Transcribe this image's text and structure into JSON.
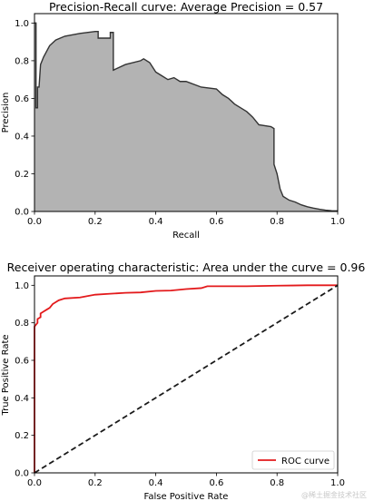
{
  "chart_data": [
    {
      "type": "area",
      "title": "Precision-Recall curve: Average Precision =        0.57",
      "xlabel": "Recall",
      "ylabel": "Precision",
      "xlim": [
        0.0,
        1.0
      ],
      "ylim": [
        0.0,
        1.05
      ],
      "xticks": [
        "0.0",
        "0.2",
        "0.4",
        "0.6",
        "0.8",
        "1.0"
      ],
      "yticks": [
        "0.0",
        "0.2",
        "0.4",
        "0.6",
        "0.8",
        "1.0"
      ],
      "fill_color": "#b3b3b3",
      "line_color": "#333333",
      "series": [
        {
          "x": [
            0.0,
            0.005,
            0.005,
            0.01,
            0.01,
            0.015,
            0.02,
            0.03,
            0.05,
            0.07,
            0.1,
            0.15,
            0.2,
            0.21,
            0.21,
            0.25,
            0.25,
            0.26,
            0.26,
            0.3,
            0.35,
            0.36,
            0.38,
            0.4,
            0.42,
            0.44,
            0.46,
            0.48,
            0.5,
            0.55,
            0.6,
            0.62,
            0.64,
            0.66,
            0.68,
            0.7,
            0.72,
            0.74,
            0.78,
            0.79,
            0.79,
            0.8,
            0.81,
            0.82,
            0.84,
            0.86,
            0.88,
            0.9,
            0.92,
            0.94,
            0.96,
            0.98,
            1.0
          ],
          "y": [
            1.0,
            1.0,
            0.55,
            0.55,
            0.66,
            0.66,
            0.78,
            0.82,
            0.88,
            0.91,
            0.93,
            0.945,
            0.955,
            0.955,
            0.92,
            0.92,
            0.95,
            0.95,
            0.75,
            0.78,
            0.8,
            0.81,
            0.79,
            0.74,
            0.72,
            0.7,
            0.71,
            0.69,
            0.69,
            0.66,
            0.65,
            0.62,
            0.6,
            0.57,
            0.55,
            0.53,
            0.5,
            0.46,
            0.45,
            0.44,
            0.25,
            0.2,
            0.12,
            0.08,
            0.06,
            0.05,
            0.035,
            0.025,
            0.018,
            0.012,
            0.007,
            0.004,
            0.003
          ]
        }
      ]
    },
    {
      "type": "line",
      "title": "Receiver operating characteristic: Area under the        curve = 0.96",
      "xlabel": "False Positive Rate",
      "ylabel": "True Positive Rate",
      "xlim": [
        0.0,
        1.0
      ],
      "ylim": [
        0.0,
        1.05
      ],
      "xticks": [
        "0.0",
        "0.2",
        "0.4",
        "0.6",
        "0.8",
        "1.0"
      ],
      "yticks": [
        "0.0",
        "0.2",
        "0.4",
        "0.6",
        "0.8",
        "1.0"
      ],
      "legend_position": "lower-right",
      "series": [
        {
          "name": "ROC curve",
          "color": "#e31a1c",
          "x": [
            0.0,
            0.0,
            0.01,
            0.01,
            0.02,
            0.02,
            0.03,
            0.04,
            0.05,
            0.06,
            0.08,
            0.1,
            0.15,
            0.2,
            0.25,
            0.3,
            0.35,
            0.4,
            0.45,
            0.5,
            0.55,
            0.57,
            0.6,
            0.7,
            0.8,
            0.85,
            0.9,
            0.95,
            1.0
          ],
          "y": [
            0.0,
            0.78,
            0.8,
            0.82,
            0.83,
            0.85,
            0.86,
            0.87,
            0.88,
            0.9,
            0.92,
            0.93,
            0.935,
            0.95,
            0.955,
            0.96,
            0.962,
            0.97,
            0.972,
            0.98,
            0.985,
            0.995,
            0.995,
            0.995,
            0.998,
            0.999,
            1.0,
            1.0,
            1.0
          ]
        },
        {
          "color": "#1a1a1a",
          "dashed": true,
          "x": [
            0.0,
            1.0
          ],
          "y": [
            0.0,
            1.0
          ]
        }
      ]
    }
  ],
  "watermark": "@稀土掘金技术社区"
}
